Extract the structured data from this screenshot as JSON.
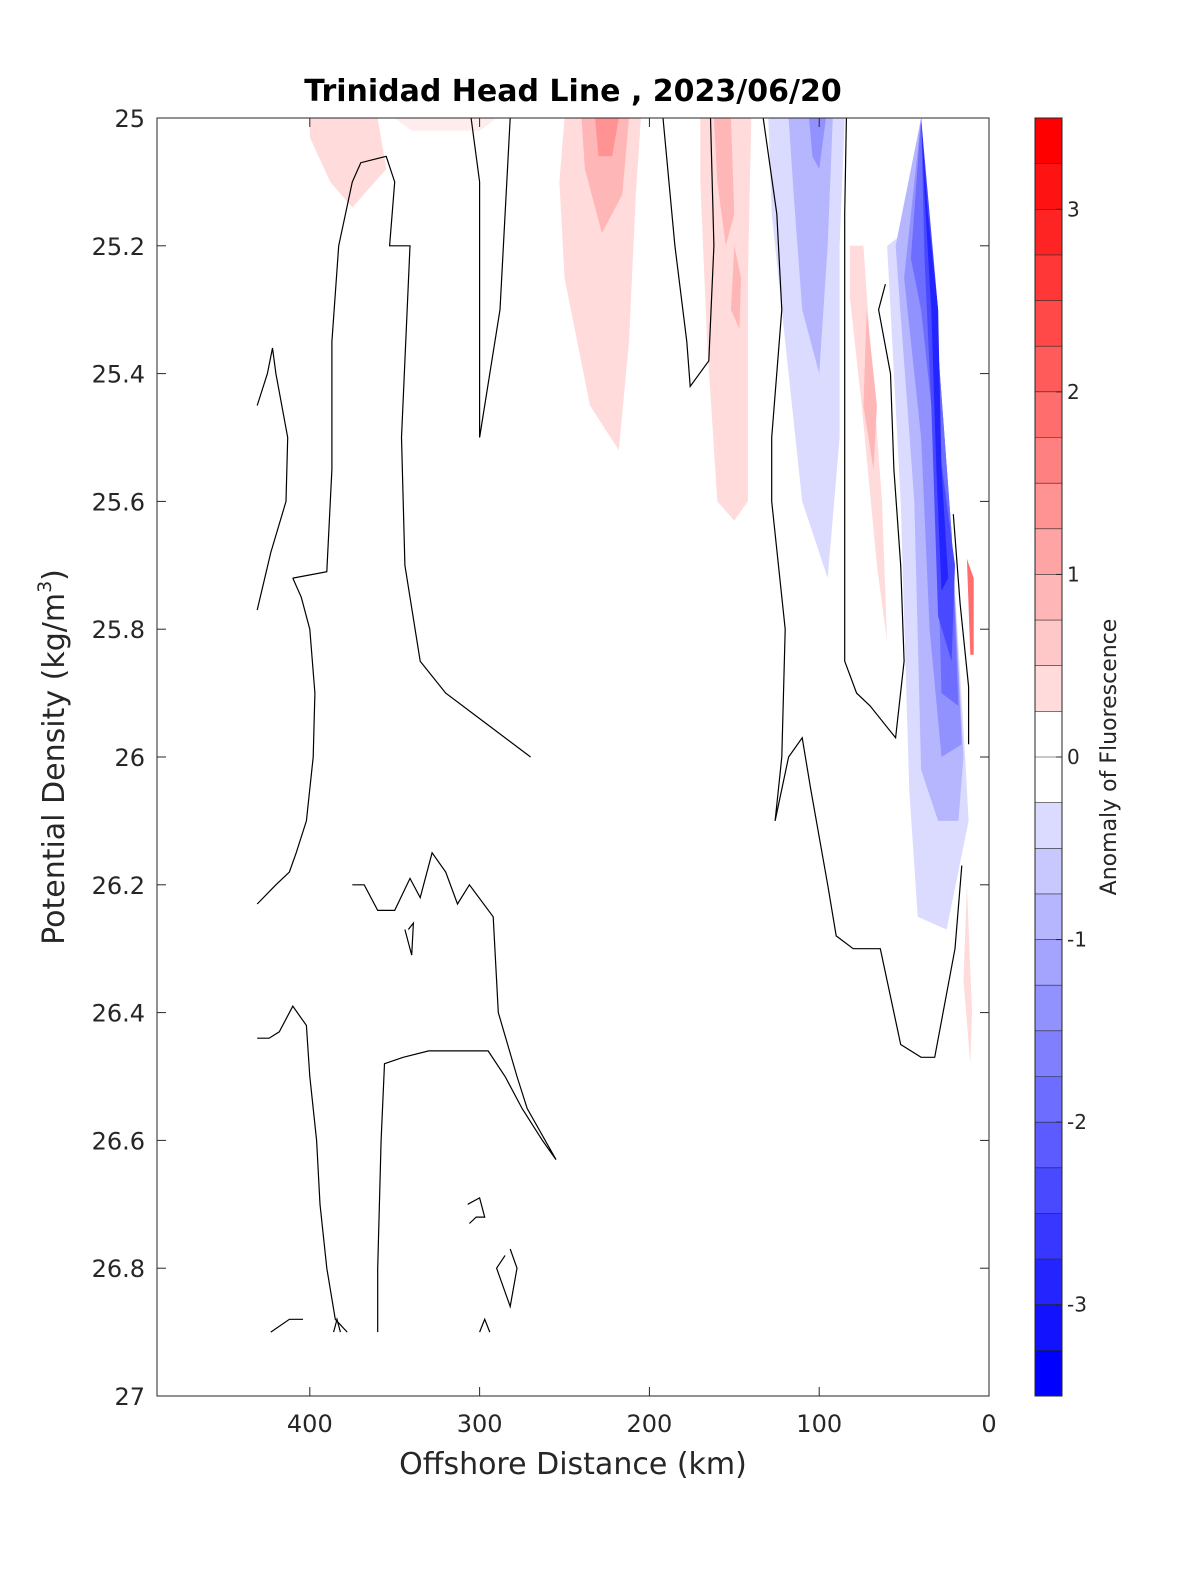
{
  "chart_data": {
    "type": "contour",
    "title": "Trinidad Head Line , 2023/06/20",
    "xlabel": "Offshore Distance (km)",
    "ylabel_main": "Potential Density (kg/m",
    "ylabel_sup": "3",
    "ylabel_close": ")",
    "xlim": [
      490,
      0
    ],
    "ylim": [
      25,
      27
    ],
    "y_reversed": true,
    "x_reversed": true,
    "x_ticks": [
      400,
      300,
      200,
      100,
      0
    ],
    "x_tick_labels": [
      "400",
      "300",
      "200",
      "100",
      "0"
    ],
    "y_ticks": [
      25,
      25.2,
      25.4,
      25.6,
      25.8,
      26,
      26.2,
      26.4,
      26.6,
      26.8,
      27
    ],
    "y_tick_labels": [
      "25",
      "25.2",
      "25.4",
      "25.6",
      "25.8",
      "26",
      "26.2",
      "26.4",
      "26.6",
      "26.8",
      "27"
    ],
    "colorbar": {
      "label": "Anomaly of Fluorescence",
      "limits": [
        -3.5,
        3.5
      ],
      "level_step": 0.25,
      "ticks": [
        3,
        2,
        1,
        0,
        -1,
        -2,
        -3
      ],
      "tick_labels": [
        "3",
        "2",
        "1",
        "0",
        "-1",
        "-2",
        "-3"
      ],
      "colormap": "blue-white-red",
      "color_min": "#0000ff",
      "color_mid": "#ffffff",
      "color_max": "#ff0000"
    },
    "anomaly_regions": [
      {
        "level": 0.5,
        "points": [
          [
            400,
            25
          ],
          [
            360,
            25
          ],
          [
            355,
            25.08
          ],
          [
            375,
            25.14
          ],
          [
            388,
            25.1
          ],
          [
            400,
            25.03
          ]
        ]
      },
      {
        "level": 0.25,
        "points": [
          [
            350,
            25
          ],
          [
            290,
            25
          ],
          [
            300,
            25.02
          ],
          [
            320,
            25.02
          ],
          [
            340,
            25.02
          ]
        ]
      },
      {
        "level": 0.5,
        "points": [
          [
            250,
            25
          ],
          [
            205,
            25
          ],
          [
            208,
            25.12
          ],
          [
            212,
            25.35
          ],
          [
            218,
            25.52
          ],
          [
            235,
            25.45
          ],
          [
            250,
            25.25
          ],
          [
            253,
            25.1
          ]
        ]
      },
      {
        "level": 1.0,
        "points": [
          [
            240,
            25
          ],
          [
            212,
            25
          ],
          [
            216,
            25.12
          ],
          [
            228,
            25.18
          ],
          [
            238,
            25.08
          ]
        ]
      },
      {
        "level": 1.5,
        "points": [
          [
            232,
            25
          ],
          [
            218,
            25
          ],
          [
            222,
            25.06
          ],
          [
            230,
            25.06
          ]
        ]
      },
      {
        "level": 0.5,
        "points": [
          [
            170,
            25
          ],
          [
            140,
            25
          ],
          [
            142,
            25.25
          ],
          [
            142,
            25.6
          ],
          [
            150,
            25.63
          ],
          [
            160,
            25.6
          ],
          [
            166,
            25.35
          ],
          [
            170,
            25.1
          ]
        ]
      },
      {
        "level": 1.0,
        "points": [
          [
            162,
            25
          ],
          [
            152,
            25
          ],
          [
            150,
            25.15
          ],
          [
            155,
            25.2
          ],
          [
            160,
            25.1
          ]
        ]
      },
      {
        "level": 1.0,
        "points": [
          [
            150,
            25.2
          ],
          [
            146,
            25.25
          ],
          [
            147,
            25.33
          ],
          [
            152,
            25.3
          ]
        ]
      },
      {
        "level": 0.5,
        "points": [
          [
            82,
            25.2
          ],
          [
            74,
            25.2
          ],
          [
            70,
            25.35
          ],
          [
            63,
            25.6
          ],
          [
            60,
            25.82
          ],
          [
            66,
            25.7
          ],
          [
            75,
            25.45
          ],
          [
            82,
            25.28
          ]
        ]
      },
      {
        "level": 1.0,
        "points": [
          [
            72,
            25.3
          ],
          [
            66,
            25.45
          ],
          [
            68,
            25.55
          ],
          [
            74,
            25.45
          ]
        ]
      },
      {
        "level": 0.5,
        "points": [
          [
            13,
            26.2
          ],
          [
            10,
            26.4
          ],
          [
            11,
            26.48
          ],
          [
            15,
            26.35
          ]
        ]
      },
      {
        "level": 2.0,
        "points": [
          [
            13,
            25.69
          ],
          [
            9,
            25.72
          ],
          [
            9,
            25.84
          ],
          [
            11,
            25.84
          ]
        ]
      },
      {
        "level": -0.5,
        "points": [
          [
            130,
            25
          ],
          [
            85,
            25
          ],
          [
            88,
            25.2
          ],
          [
            88,
            25.5
          ],
          [
            95,
            25.72
          ],
          [
            110,
            25.6
          ],
          [
            120,
            25.35
          ],
          [
            128,
            25.15
          ]
        ]
      },
      {
        "level": -1.0,
        "points": [
          [
            118,
            25
          ],
          [
            92,
            25
          ],
          [
            95,
            25.2
          ],
          [
            100,
            25.4
          ],
          [
            110,
            25.3
          ],
          [
            115,
            25.12
          ]
        ]
      },
      {
        "level": -1.5,
        "points": [
          [
            106,
            25
          ],
          [
            96,
            25
          ],
          [
            100,
            25.08
          ],
          [
            104,
            25.06
          ]
        ]
      },
      {
        "level": -0.5,
        "points": [
          [
            40,
            25
          ],
          [
            22,
            25.65
          ],
          [
            14,
            26.0
          ],
          [
            12,
            26.1
          ],
          [
            25,
            26.27
          ],
          [
            42,
            26.25
          ],
          [
            47,
            26.05
          ],
          [
            52,
            25.6
          ],
          [
            60,
            25.2
          ],
          [
            50,
            25.18
          ]
        ]
      },
      {
        "level": -1.0,
        "points": [
          [
            40,
            25
          ],
          [
            22,
            25.65
          ],
          [
            15,
            26.0
          ],
          [
            18,
            26.1
          ],
          [
            30,
            26.1
          ],
          [
            40,
            26.02
          ],
          [
            44,
            25.6
          ],
          [
            55,
            25.2
          ]
        ]
      },
      {
        "level": -1.5,
        "points": [
          [
            40,
            25
          ],
          [
            22,
            25.65
          ],
          [
            16,
            25.98
          ],
          [
            28,
            26.0
          ],
          [
            35,
            25.8
          ],
          [
            40,
            25.5
          ],
          [
            50,
            25.25
          ]
        ]
      },
      {
        "level": -2.0,
        "points": [
          [
            40,
            25
          ],
          [
            22,
            25.65
          ],
          [
            18,
            25.92
          ],
          [
            28,
            25.9
          ],
          [
            32,
            25.5
          ],
          [
            40,
            25.3
          ],
          [
            46,
            25.22
          ]
        ]
      },
      {
        "level": -2.5,
        "points": [
          [
            40,
            25
          ],
          [
            30,
            25.3
          ],
          [
            30,
            25.5
          ],
          [
            20,
            25.7
          ],
          [
            22,
            25.85
          ],
          [
            30,
            25.78
          ],
          [
            34,
            25.45
          ],
          [
            38,
            25.22
          ]
        ]
      },
      {
        "level": -3.0,
        "points": [
          [
            40,
            25
          ],
          [
            36,
            25.15
          ],
          [
            30,
            25.3
          ],
          [
            28,
            25.55
          ],
          [
            24,
            25.72
          ],
          [
            28,
            25.74
          ],
          [
            31,
            25.55
          ],
          [
            34,
            25.3
          ],
          [
            38,
            25.12
          ]
        ]
      }
    ],
    "zero_contours": [
      [
        [
          431,
          25.45
        ],
        [
          425,
          25.4
        ],
        [
          422,
          25.36
        ],
        [
          420,
          25.4
        ],
        [
          413,
          25.5
        ],
        [
          414,
          25.6
        ],
        [
          423,
          25.68
        ],
        [
          431,
          25.77
        ]
      ],
      [
        [
          431,
          26.23
        ],
        [
          420,
          26.2
        ],
        [
          412,
          26.18
        ],
        [
          408,
          26.15
        ],
        [
          402,
          26.1
        ],
        [
          398,
          26.0
        ],
        [
          397,
          25.9
        ],
        [
          400,
          25.8
        ],
        [
          405,
          25.75
        ],
        [
          410,
          25.72
        ]
      ],
      [
        [
          410,
          25.72
        ],
        [
          390,
          25.71
        ],
        [
          387,
          25.55
        ],
        [
          387,
          25.35
        ],
        [
          383,
          25.2
        ],
        [
          375,
          25.1
        ],
        [
          370,
          25.07
        ],
        [
          355,
          25.06
        ],
        [
          350,
          25.1
        ],
        [
          353,
          25.2
        ],
        [
          341,
          25.2
        ],
        [
          346,
          25.5
        ],
        [
          344,
          25.7
        ],
        [
          335,
          25.85
        ],
        [
          320,
          25.9
        ],
        [
          295,
          25.95
        ],
        [
          270,
          26.0
        ]
      ],
      [
        [
          282,
          25
        ],
        [
          288,
          25.3
        ],
        [
          297,
          25.45
        ],
        [
          300,
          25.5
        ],
        [
          300,
          25.1
        ],
        [
          305,
          25
        ]
      ],
      [
        [
          192,
          25
        ],
        [
          185,
          25.2
        ],
        [
          178,
          25.35
        ],
        [
          176,
          25.42
        ],
        [
          165,
          25.38
        ],
        [
          162,
          25.2
        ],
        [
          164,
          25
        ]
      ],
      [
        [
          133,
          25
        ],
        [
          125,
          25.15
        ],
        [
          122,
          25.3
        ],
        [
          128,
          25.5
        ],
        [
          128,
          25.6
        ],
        [
          120,
          25.8
        ],
        [
          122,
          26.0
        ],
        [
          126,
          26.1
        ],
        [
          118,
          26.0
        ],
        [
          110,
          25.97
        ],
        [
          105,
          26.05
        ],
        [
          95,
          26.2
        ],
        [
          90,
          26.28
        ],
        [
          80,
          26.3
        ],
        [
          70,
          26.3
        ],
        [
          64,
          26.3
        ],
        [
          52,
          26.45
        ],
        [
          40,
          26.47
        ],
        [
          32,
          26.47
        ],
        [
          20,
          26.3
        ],
        [
          16,
          26.17
        ]
      ],
      [
        [
          84,
          25
        ],
        [
          85,
          25.15
        ],
        [
          85,
          25.4
        ],
        [
          85,
          25.7
        ],
        [
          85,
          25.85
        ],
        [
          78,
          25.9
        ],
        [
          70,
          25.92
        ],
        [
          55,
          25.97
        ],
        [
          50,
          25.85
        ],
        [
          52,
          25.7
        ],
        [
          56,
          25.55
        ],
        [
          58,
          25.4
        ],
        [
          65,
          25.3
        ],
        [
          61,
          25.26
        ]
      ],
      [
        [
          21,
          25.62
        ],
        [
          17,
          25.76
        ],
        [
          12,
          25.89
        ],
        [
          12,
          25.98
        ]
      ],
      [
        [
          431,
          26.44
        ],
        [
          424,
          26.44
        ],
        [
          418,
          26.43
        ],
        [
          410,
          26.39
        ],
        [
          402,
          26.42
        ],
        [
          400,
          26.5
        ],
        [
          396,
          26.6
        ],
        [
          394,
          26.7
        ],
        [
          390,
          26.8
        ],
        [
          385,
          26.88
        ],
        [
          378,
          26.9
        ]
      ],
      [
        [
          423,
          26.9
        ],
        [
          412,
          26.88
        ],
        [
          404,
          26.88
        ]
      ],
      [
        [
          386,
          26.9
        ],
        [
          384,
          26.88
        ],
        [
          382,
          26.9
        ]
      ],
      [
        [
          360,
          26.9
        ],
        [
          360,
          26.8
        ],
        [
          358,
          26.6
        ],
        [
          356,
          26.48
        ],
        [
          345,
          26.47
        ],
        [
          330,
          26.46
        ],
        [
          315,
          26.46
        ],
        [
          295,
          26.46
        ],
        [
          285,
          26.5
        ],
        [
          275,
          26.55
        ],
        [
          263,
          26.6
        ],
        [
          255,
          26.63
        ],
        [
          272,
          26.55
        ],
        [
          278,
          26.5
        ],
        [
          289,
          26.4
        ],
        [
          292,
          26.25
        ],
        [
          306,
          26.2
        ],
        [
          313,
          26.23
        ],
        [
          320,
          26.18
        ],
        [
          328,
          26.15
        ],
        [
          335,
          26.22
        ],
        [
          341,
          26.19
        ],
        [
          350,
          26.24
        ],
        [
          360,
          26.24
        ],
        [
          368,
          26.2
        ],
        [
          375,
          26.2
        ]
      ],
      [
        [
          344,
          26.27
        ],
        [
          340,
          26.31
        ],
        [
          339,
          26.26
        ],
        [
          342,
          26.27
        ]
      ],
      [
        [
          307,
          26.7
        ],
        [
          300,
          26.69
        ],
        [
          297,
          26.72
        ],
        [
          302,
          26.72
        ],
        [
          306,
          26.73
        ]
      ],
      [
        [
          300,
          26.9
        ],
        [
          297,
          26.88
        ],
        [
          294,
          26.9
        ]
      ],
      [
        [
          282,
          26.77
        ],
        [
          278,
          26.8
        ],
        [
          282,
          26.86
        ],
        [
          290,
          26.8
        ],
        [
          285,
          26.78
        ]
      ]
    ]
  }
}
